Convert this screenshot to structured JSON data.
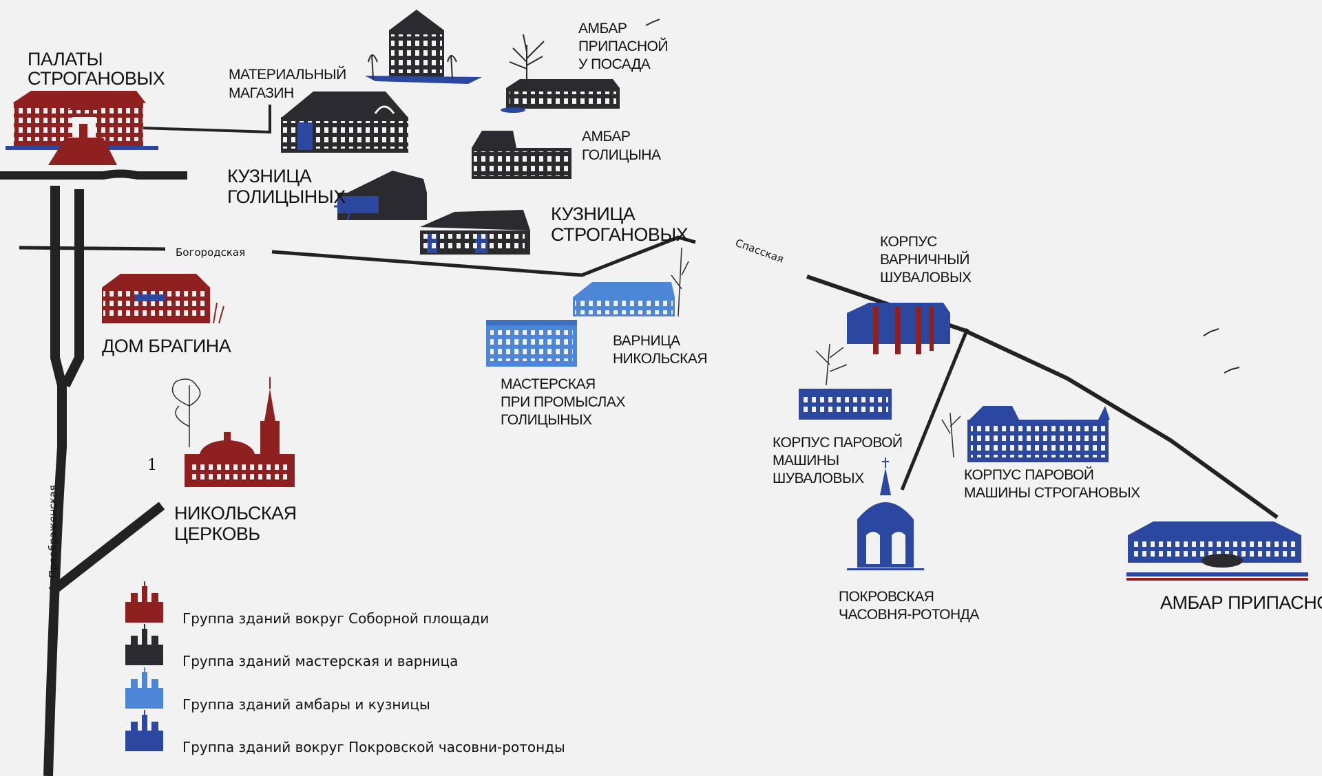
{
  "streets": {
    "bogorodskaya": "Богородская",
    "spasskaya": "Спасская",
    "preobrazhenskaya": "Преображенская"
  },
  "marker_number": "1",
  "colors": {
    "dark_red": "#8e2020",
    "black": "#2b2b2f",
    "light_blue": "#4d86d6",
    "dark_blue": "#2b47a0",
    "road": "#222222",
    "background": "#f2f2f2"
  },
  "buildings": {
    "palaty_stroganovykh": [
      "ПАЛАТЫ",
      "СТРОГАНОВЫХ"
    ],
    "materialnyi_magazin": [
      "МАТЕРИАЛЬНЫЙ",
      "МАГАЗИН"
    ],
    "ambar_pripasnoi_u_posada": [
      "АМБАР",
      "ПРИПАСНОЙ",
      "У ПОСАДА"
    ],
    "ambar_golitsyna": [
      "АМБАР",
      "ГОЛИЦЫНА"
    ],
    "kuznitsa_golitsynykh": [
      "КУЗНИЦА",
      "ГОЛИЦЫНЫХ"
    ],
    "kuznitsa_stroganovykh": [
      "КУЗНИЦА",
      "СТРОГАНОВЫХ"
    ],
    "dom_bragina": [
      "ДОМ БРАГИНА"
    ],
    "nikolskaya_tserkov": [
      "НИКОЛЬСКАЯ",
      "ЦЕРКОВЬ"
    ],
    "varnitsa_nikolskaya": [
      "ВАРНИЦА",
      "НИКОЛЬСКАЯ"
    ],
    "masterskaya": [
      "МАСТЕРСКАЯ",
      "ПРИ ПРОМЫСЛАХ",
      "ГОЛИЦЫНЫХ"
    ],
    "korpus_varnichnyi": [
      "КОРПУС",
      "ВАРНИЧНЫЙ",
      "ШУВАЛОВЫХ"
    ],
    "korpus_parovoi_shuvalovykh": [
      "КОРПУС ПАРОВОЙ",
      "МАШИНЫ",
      "ШУВАЛОВЫХ"
    ],
    "korpus_parovoi_stroganovykh": [
      "КОРПУС ПАРОВОЙ",
      "МАШИНЫ СТРОГАНОВЫХ"
    ],
    "pokrovskaya_chasovnya": [
      "ПОКРОВСКАЯ",
      "ЧАСОВНЯ-РОТОНДА"
    ],
    "ambar_pripasnoi": [
      "АМБАР ПРИПАСНОЙ"
    ]
  },
  "legend": [
    {
      "label": "Группа зданий вокруг Соборной площади",
      "color": "#8e2020"
    },
    {
      "label": "Группа зданий мастерская и варница",
      "color": "#2b2b2f"
    },
    {
      "label": "Группа зданий амбары и кузницы",
      "color": "#4d86d6"
    },
    {
      "label": "Группа зданий вокруг Покровской часовни-ротонды",
      "color": "#2b47a0"
    }
  ]
}
